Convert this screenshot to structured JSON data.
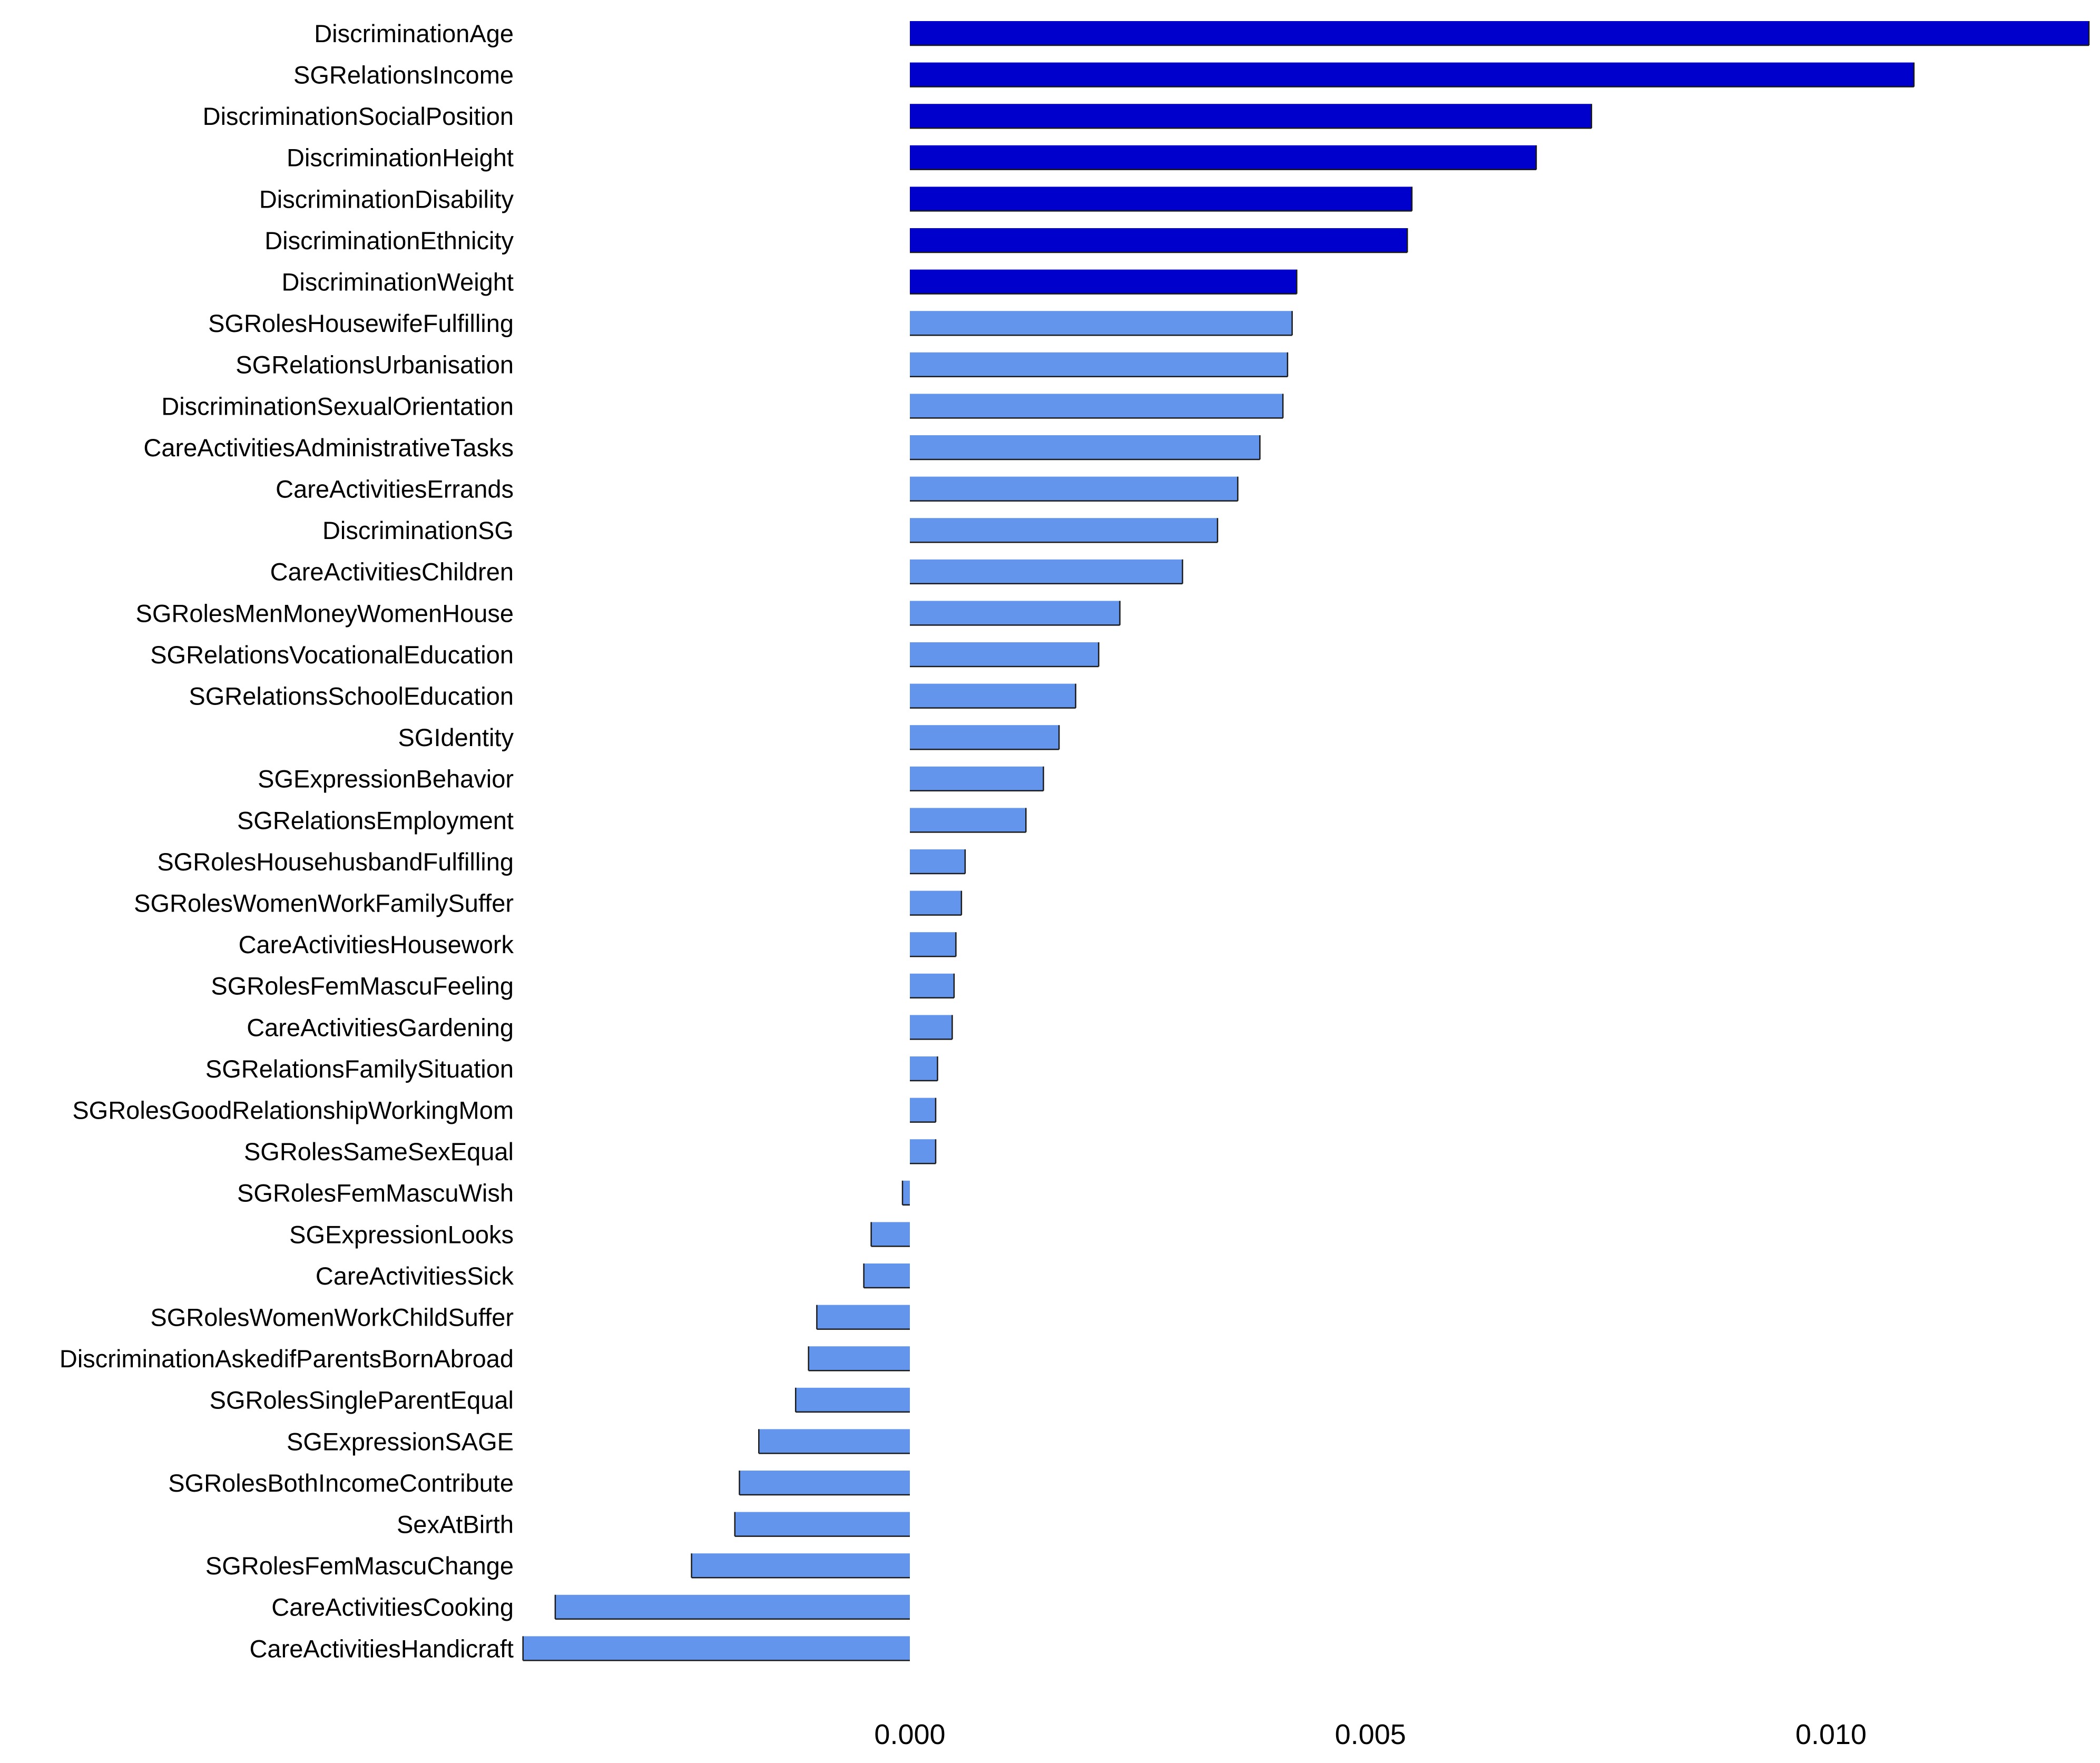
{
  "chart_data": {
    "type": "bar",
    "orientation": "horizontal",
    "title": "",
    "xlabel": "",
    "ylabel": "",
    "xlim": [
      -0.0042,
      0.0128
    ],
    "x_ticks": [
      0.0,
      0.005,
      0.01
    ],
    "x_tick_labels": [
      "0.000",
      "0.005",
      "0.010"
    ],
    "grid": false,
    "legend": "none",
    "colors": {
      "highlight": "#0000CD",
      "default": "#6495ED",
      "outline": "#1a1a1a",
      "text": "#000000"
    },
    "categories": [
      "DiscriminationAge",
      "SGRelationsIncome",
      "DiscriminationSocialPosition",
      "DiscriminationHeight",
      "DiscriminationDisability",
      "DiscriminationEthnicity",
      "DiscriminationWeight",
      "SGRolesHousewifeFulfilling",
      "SGRelationsUrbanisation",
      "DiscriminationSexualOrientation",
      "CareActivitiesAdministrativeTasks",
      "CareActivitiesErrands",
      "DiscriminationSG",
      "CareActivitiesChildren",
      "SGRolesMenMoneyWomenHouse",
      "SGRelationsVocationalEducation",
      "SGRelationsSchoolEducation",
      "SGIdentity",
      "SGExpressionBehavior",
      "SGRelationsEmployment",
      "SGRolesHousehusbandFulfilling",
      "SGRolesWomenWorkFamilySuffer",
      "CareActivitiesHousework",
      "SGRolesFemMascuFeeling",
      "CareActivitiesGardening",
      "SGRelationsFamilySituation",
      "SGRolesGoodRelationshipWorkingMom",
      "SGRolesSameSexEqual",
      "SGRolesFemMascuWish",
      "SGExpressionLooks",
      "CareActivitiesSick",
      "SGRolesWomenWorkChildSuffer",
      "DiscriminationAskedifParentsBornAbroad",
      "SGRolesSingleParentEqual",
      "SGExpressionSAGE",
      "SGRolesBothIncomeContribute",
      "SexAtBirth",
      "SGRolesFemMascuChange",
      "CareActivitiesCooking",
      "CareActivitiesHandicraft"
    ],
    "values": [
      0.0128,
      0.0109,
      0.0074,
      0.0068,
      0.00545,
      0.0054,
      0.0042,
      0.00415,
      0.0041,
      0.00405,
      0.0038,
      0.00356,
      0.00334,
      0.00296,
      0.00228,
      0.00205,
      0.0018,
      0.00162,
      0.00145,
      0.00126,
      0.0006,
      0.00056,
      0.0005,
      0.00048,
      0.00046,
      0.0003,
      0.00028,
      0.00028,
      -8e-05,
      -0.00042,
      -0.0005,
      -0.00101,
      -0.0011,
      -0.00124,
      -0.00164,
      -0.00185,
      -0.0019,
      -0.00237,
      -0.00385,
      -0.0042
    ],
    "highlighted": [
      true,
      true,
      true,
      true,
      true,
      true,
      true,
      false,
      false,
      false,
      false,
      false,
      false,
      false,
      false,
      false,
      false,
      false,
      false,
      false,
      false,
      false,
      false,
      false,
      false,
      false,
      false,
      false,
      false,
      false,
      false,
      false,
      false,
      false,
      false,
      false,
      false,
      false,
      false,
      false
    ]
  }
}
